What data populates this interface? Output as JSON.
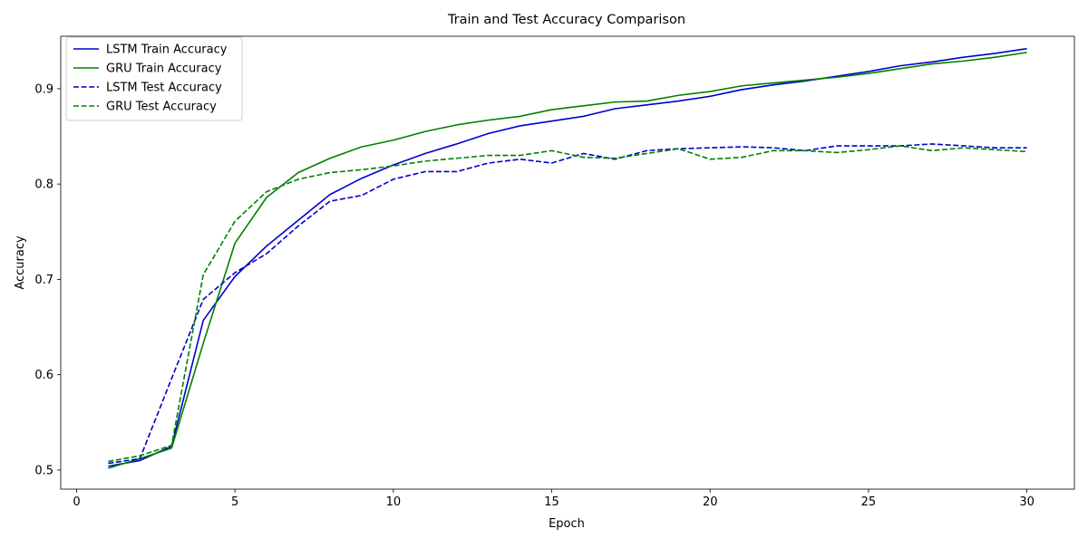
{
  "chart_data": {
    "type": "line",
    "title": "Train and Test Accuracy Comparison",
    "xlabel": "Epoch",
    "ylabel": "Accuracy",
    "xlim": [
      -0.5,
      31.5
    ],
    "ylim": [
      0.48,
      0.955
    ],
    "xticks": [
      0,
      5,
      10,
      15,
      20,
      25,
      30
    ],
    "yticks": [
      0.5,
      0.6,
      0.7,
      0.8,
      0.9
    ],
    "grid": false,
    "legend_position": "top-left",
    "x": [
      1,
      2,
      3,
      4,
      5,
      6,
      7,
      8,
      9,
      10,
      11,
      12,
      13,
      14,
      15,
      16,
      17,
      18,
      19,
      20,
      21,
      22,
      23,
      24,
      25,
      26,
      27,
      28,
      29,
      30
    ],
    "series": [
      {
        "name": "LSTM Train Accuracy",
        "color": "#0000cc",
        "style": "solid",
        "values": [
          0.504,
          0.51,
          0.525,
          0.657,
          0.703,
          0.735,
          0.762,
          0.789,
          0.806,
          0.82,
          0.832,
          0.842,
          0.853,
          0.861,
          0.866,
          0.871,
          0.879,
          0.883,
          0.887,
          0.892,
          0.899,
          0.904,
          0.908,
          0.913,
          0.918,
          0.924,
          0.928,
          0.933,
          0.937,
          0.942
        ]
      },
      {
        "name": "GRU Train Accuracy",
        "color": "#008000",
        "style": "solid",
        "values": [
          0.502,
          0.512,
          0.523,
          0.633,
          0.738,
          0.786,
          0.812,
          0.827,
          0.839,
          0.846,
          0.855,
          0.862,
          0.867,
          0.871,
          0.878,
          0.882,
          0.886,
          0.887,
          0.893,
          0.897,
          0.903,
          0.906,
          0.909,
          0.912,
          0.916,
          0.921,
          0.926,
          0.929,
          0.933,
          0.938
        ]
      },
      {
        "name": "LSTM Test Accuracy",
        "color": "#0000cc",
        "style": "dashed",
        "values": [
          0.507,
          0.512,
          0.596,
          0.679,
          0.707,
          0.727,
          0.756,
          0.782,
          0.788,
          0.805,
          0.813,
          0.813,
          0.822,
          0.826,
          0.822,
          0.832,
          0.826,
          0.835,
          0.837,
          0.838,
          0.839,
          0.838,
          0.835,
          0.84,
          0.84,
          0.84,
          0.842,
          0.84,
          0.838,
          0.838
        ]
      },
      {
        "name": "GRU Test Accuracy",
        "color": "#008000",
        "style": "dashed",
        "values": [
          0.509,
          0.515,
          0.526,
          0.705,
          0.761,
          0.792,
          0.805,
          0.812,
          0.815,
          0.819,
          0.824,
          0.827,
          0.83,
          0.83,
          0.835,
          0.828,
          0.827,
          0.832,
          0.837,
          0.826,
          0.828,
          0.835,
          0.835,
          0.833,
          0.836,
          0.84,
          0.835,
          0.838,
          0.836,
          0.834
        ]
      }
    ]
  }
}
